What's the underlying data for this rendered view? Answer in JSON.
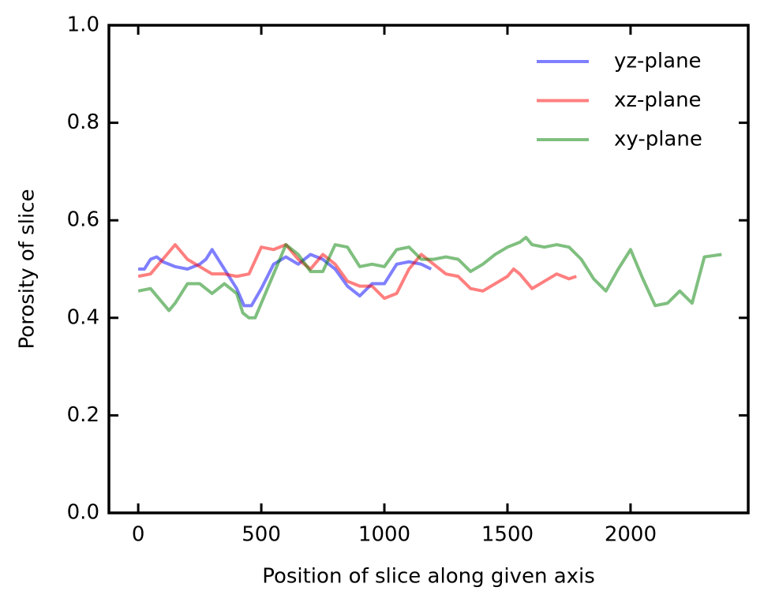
{
  "chart_data": {
    "type": "line",
    "xlabel": "Position of slice along given axis",
    "ylabel": "Porosity of slice",
    "xlim": [
      -119,
      2478
    ],
    "ylim": [
      0,
      1
    ],
    "xticks": [
      0,
      500,
      1000,
      1500,
      2000
    ],
    "yticks": [
      {
        "value": 0,
        "label": "0.0"
      },
      0.2,
      0.4,
      0.6,
      0.8,
      {
        "value": 1,
        "label": "1.0"
      }
    ],
    "tick_direction": "in",
    "mirror_ticks": true,
    "grid": false,
    "legend_position": "upper-right",
    "line_alpha": 0.5,
    "series": [
      {
        "name": "yz-plane",
        "color": "#0000ff",
        "x": [
          0,
          25,
          50,
          75,
          100,
          150,
          200,
          250,
          275,
          300,
          350,
          400,
          430,
          460,
          500,
          550,
          600,
          650,
          700,
          750,
          800,
          850,
          900,
          950,
          1000,
          1050,
          1100,
          1150,
          1190
        ],
        "values": [
          0.5,
          0.5,
          0.52,
          0.525,
          0.515,
          0.505,
          0.5,
          0.51,
          0.52,
          0.54,
          0.5,
          0.46,
          0.425,
          0.425,
          0.46,
          0.51,
          0.525,
          0.51,
          0.53,
          0.52,
          0.5,
          0.465,
          0.445,
          0.47,
          0.47,
          0.51,
          0.515,
          0.51,
          0.5
        ]
      },
      {
        "name": "xz-plane",
        "color": "#ff0000",
        "x": [
          0,
          50,
          100,
          150,
          200,
          250,
          300,
          350,
          400,
          450,
          500,
          550,
          600,
          650,
          700,
          750,
          800,
          850,
          900,
          950,
          1000,
          1050,
          1100,
          1150,
          1200,
          1250,
          1300,
          1350,
          1400,
          1450,
          1500,
          1525,
          1550,
          1600,
          1650,
          1700,
          1750,
          1780
        ],
        "values": [
          0.485,
          0.49,
          0.52,
          0.55,
          0.52,
          0.505,
          0.49,
          0.49,
          0.485,
          0.49,
          0.545,
          0.54,
          0.55,
          0.52,
          0.5,
          0.53,
          0.51,
          0.475,
          0.465,
          0.465,
          0.44,
          0.45,
          0.5,
          0.53,
          0.51,
          0.49,
          0.485,
          0.46,
          0.455,
          0.47,
          0.485,
          0.5,
          0.49,
          0.46,
          0.475,
          0.49,
          0.48,
          0.485
        ]
      },
      {
        "name": "xy-plane",
        "color": "#008000",
        "x": [
          0,
          50,
          100,
          125,
          150,
          200,
          250,
          300,
          350,
          400,
          425,
          450,
          475,
          500,
          550,
          600,
          650,
          700,
          750,
          800,
          850,
          900,
          950,
          1000,
          1050,
          1100,
          1150,
          1200,
          1250,
          1300,
          1350,
          1400,
          1450,
          1500,
          1550,
          1575,
          1600,
          1650,
          1700,
          1750,
          1800,
          1850,
          1900,
          1950,
          2000,
          2050,
          2100,
          2150,
          2200,
          2250,
          2300,
          2370
        ],
        "values": [
          0.455,
          0.46,
          0.43,
          0.415,
          0.43,
          0.47,
          0.47,
          0.45,
          0.47,
          0.45,
          0.41,
          0.4,
          0.4,
          0.43,
          0.49,
          0.55,
          0.53,
          0.495,
          0.495,
          0.55,
          0.545,
          0.505,
          0.51,
          0.505,
          0.54,
          0.545,
          0.52,
          0.52,
          0.525,
          0.52,
          0.495,
          0.51,
          0.53,
          0.545,
          0.555,
          0.565,
          0.55,
          0.545,
          0.55,
          0.545,
          0.52,
          0.48,
          0.455,
          0.5,
          0.54,
          0.48,
          0.425,
          0.43,
          0.455,
          0.43,
          0.525,
          0.53
        ]
      }
    ]
  }
}
